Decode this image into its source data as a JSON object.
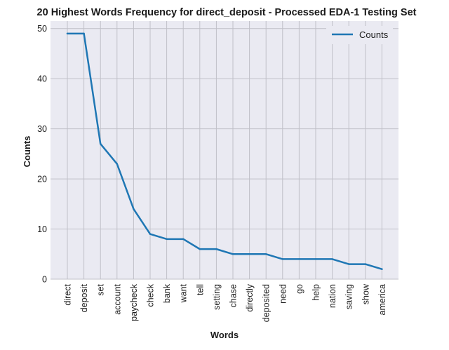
{
  "chart_data": {
    "type": "line",
    "title": "20 Highest Words Frequency for direct_deposit - Processed EDA-1 Testing Set",
    "xlabel": "Words",
    "ylabel": "Counts",
    "categories": [
      "direct",
      "deposit",
      "set",
      "account",
      "paycheck",
      "check",
      "bank",
      "want",
      "tell",
      "setting",
      "chase",
      "directly",
      "deposited",
      "need",
      "go",
      "help",
      "nation",
      "saving",
      "show",
      "america"
    ],
    "series": [
      {
        "name": "Counts",
        "values": [
          49,
          49,
          27,
          23,
          14,
          9,
          8,
          8,
          6,
          6,
          5,
          5,
          5,
          4,
          4,
          4,
          4,
          3,
          3,
          2
        ],
        "color": "#1f77b4"
      }
    ],
    "yticks": [
      0,
      10,
      20,
      30,
      40,
      50
    ],
    "ylim": [
      0,
      51.5
    ],
    "grid": true,
    "legend_position": "top-right",
    "background_color": "#eaeaf2",
    "grid_color": "#c0c0c8"
  }
}
